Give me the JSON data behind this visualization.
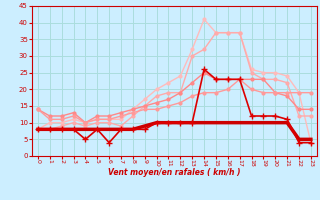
{
  "background_color": "#cceeff",
  "grid_color": "#aadddd",
  "xlabel": "Vent moyen/en rafales ( km/h )",
  "tick_color": "#cc0000",
  "xlim": [
    -0.5,
    23.5
  ],
  "ylim": [
    0,
    45
  ],
  "yticks": [
    0,
    5,
    10,
    15,
    20,
    25,
    30,
    35,
    40,
    45
  ],
  "xticks": [
    0,
    1,
    2,
    3,
    4,
    5,
    6,
    7,
    8,
    9,
    10,
    11,
    12,
    13,
    14,
    15,
    16,
    17,
    18,
    19,
    20,
    21,
    22,
    23
  ],
  "series": [
    {
      "x": [
        0,
        1,
        2,
        3,
        4,
        5,
        6,
        7,
        8,
        9,
        10,
        11,
        12,
        13,
        14,
        15,
        16,
        17,
        18,
        19,
        20,
        21,
        22,
        23
      ],
      "y": [
        8,
        10,
        10,
        11,
        10,
        11,
        11,
        11,
        14,
        17,
        20,
        22,
        24,
        32,
        41,
        37,
        37,
        37,
        26,
        25,
        25,
        24,
        19,
        4
      ],
      "color": "#ffbbbb",
      "lw": 1.0,
      "marker": "o",
      "ms": 2.0,
      "zorder": 2
    },
    {
      "x": [
        0,
        1,
        2,
        3,
        4,
        5,
        6,
        7,
        8,
        9,
        10,
        11,
        12,
        13,
        14,
        15,
        16,
        17,
        18,
        19,
        20,
        21,
        22,
        23
      ],
      "y": [
        8,
        8,
        9,
        10,
        9,
        10,
        10,
        9,
        12,
        15,
        18,
        19,
        19,
        30,
        32,
        37,
        37,
        37,
        25,
        23,
        23,
        22,
        12,
        12
      ],
      "color": "#ffaaaa",
      "lw": 1.0,
      "marker": "o",
      "ms": 2.0,
      "zorder": 2
    },
    {
      "x": [
        0,
        1,
        2,
        3,
        4,
        5,
        6,
        7,
        8,
        9,
        10,
        11,
        12,
        13,
        14,
        15,
        16,
        17,
        18,
        19,
        20,
        21,
        22,
        23
      ],
      "y": [
        14,
        12,
        12,
        13,
        10,
        12,
        12,
        13,
        14,
        15,
        16,
        17,
        19,
        22,
        25,
        23,
        23,
        23,
        23,
        23,
        19,
        18,
        14,
        14
      ],
      "color": "#ff8888",
      "lw": 1.0,
      "marker": "o",
      "ms": 2.0,
      "zorder": 3
    },
    {
      "x": [
        0,
        1,
        2,
        3,
        4,
        5,
        6,
        7,
        8,
        9,
        10,
        11,
        12,
        13,
        14,
        15,
        16,
        17,
        18,
        19,
        20,
        21,
        22,
        23
      ],
      "y": [
        14,
        11,
        11,
        12,
        10,
        11,
        11,
        12,
        13,
        14,
        14,
        15,
        16,
        18,
        19,
        19,
        20,
        23,
        20,
        19,
        19,
        19,
        19,
        19
      ],
      "color": "#ff9999",
      "lw": 1.0,
      "marker": "o",
      "ms": 2.0,
      "zorder": 3
    },
    {
      "x": [
        0,
        1,
        2,
        3,
        4,
        5,
        6,
        7,
        8,
        9,
        10,
        11,
        12,
        13,
        14,
        15,
        16,
        17,
        18,
        19,
        20,
        21,
        22,
        23
      ],
      "y": [
        8,
        8,
        8,
        8,
        5,
        8,
        4,
        8,
        8,
        8,
        10,
        10,
        10,
        10,
        26,
        23,
        23,
        23,
        12,
        12,
        12,
        11,
        4,
        4
      ],
      "color": "#dd0000",
      "lw": 1.2,
      "marker": "+",
      "ms": 4,
      "zorder": 5
    },
    {
      "x": [
        0,
        1,
        2,
        3,
        4,
        5,
        6,
        7,
        8,
        9,
        10,
        11,
        12,
        13,
        14,
        15,
        16,
        17,
        18,
        19,
        20,
        21,
        22,
        23
      ],
      "y": [
        8,
        8,
        8,
        8,
        8,
        8,
        8,
        8,
        8,
        9,
        10,
        10,
        10,
        10,
        10,
        10,
        10,
        10,
        10,
        10,
        10,
        10,
        5,
        5
      ],
      "color": "#cc0000",
      "lw": 2.5,
      "marker": null,
      "ms": 0,
      "zorder": 4
    }
  ]
}
